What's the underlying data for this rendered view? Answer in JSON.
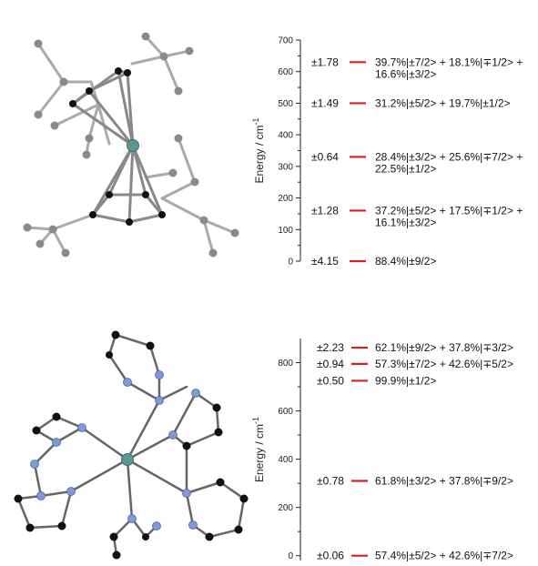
{
  "colors": {
    "level": "#d62020",
    "metal": "#5e9694",
    "carbon_gray": "#8a8a8a",
    "carbon_black": "#111111",
    "nitrogen": "#7f98d8"
  },
  "panels": [
    {
      "ylabel": "Energy / cm",
      "ylabel_sup": "-1",
      "ylim": [
        0,
        700
      ],
      "ticks": [
        "0",
        "100",
        "200",
        "300",
        "400",
        "500",
        "600",
        "700"
      ],
      "tick_values": [
        0,
        100,
        200,
        300,
        400,
        500,
        600,
        700
      ],
      "levels": [
        {
          "energy": 0,
          "g": "±4.15",
          "comp": [
            "88.4%|±9/2>"
          ]
        },
        {
          "energy": 160,
          "g": "±1.28",
          "comp": [
            "37.2%|±5/2> + 17.5%|∓1/2> +",
            "16.1%|±3/2>"
          ]
        },
        {
          "energy": 330,
          "g": "±0.64",
          "comp": [
            "28.4%|±3/2> + 25.6%|∓7/2> +",
            "22.5%|±1/2>"
          ]
        },
        {
          "energy": 500,
          "g": "±1.49",
          "comp": [
            "31.2%|±5/2> + 19.7%|±1/2>"
          ]
        },
        {
          "energy": 630,
          "g": "±1.78",
          "comp": [
            "39.7%|±7/2> + 18.1%|∓1/2> +",
            "16.6%|±3/2>"
          ]
        }
      ]
    },
    {
      "ylabel": "Energy / cm",
      "ylabel_sup": "-1",
      "ylim": [
        -20,
        900
      ],
      "ticks": [
        "0",
        "200",
        "400",
        "600",
        "800"
      ],
      "tick_values": [
        0,
        200,
        400,
        600,
        800
      ],
      "levels": [
        {
          "energy": 0,
          "g": "±0.06",
          "comp": [
            "57.4%|±5/2> + 42.6%|∓7/2>"
          ]
        },
        {
          "energy": 310,
          "g": "±0.78",
          "comp": [
            "61.8%|±3/2> + 37.8%|∓9/2>"
          ]
        },
        {
          "energy": 725,
          "g": "±0.50",
          "comp": [
            "99.9%|±1/2>"
          ]
        },
        {
          "energy": 795,
          "g": "±0.94",
          "comp": [
            "57.3%|±7/2> + 42.6%|∓5/2>"
          ]
        },
        {
          "energy": 862,
          "g": "±2.23",
          "comp": [
            "62.1%|±9/2> + 37.8%|∓3/2>"
          ]
        }
      ]
    }
  ]
}
